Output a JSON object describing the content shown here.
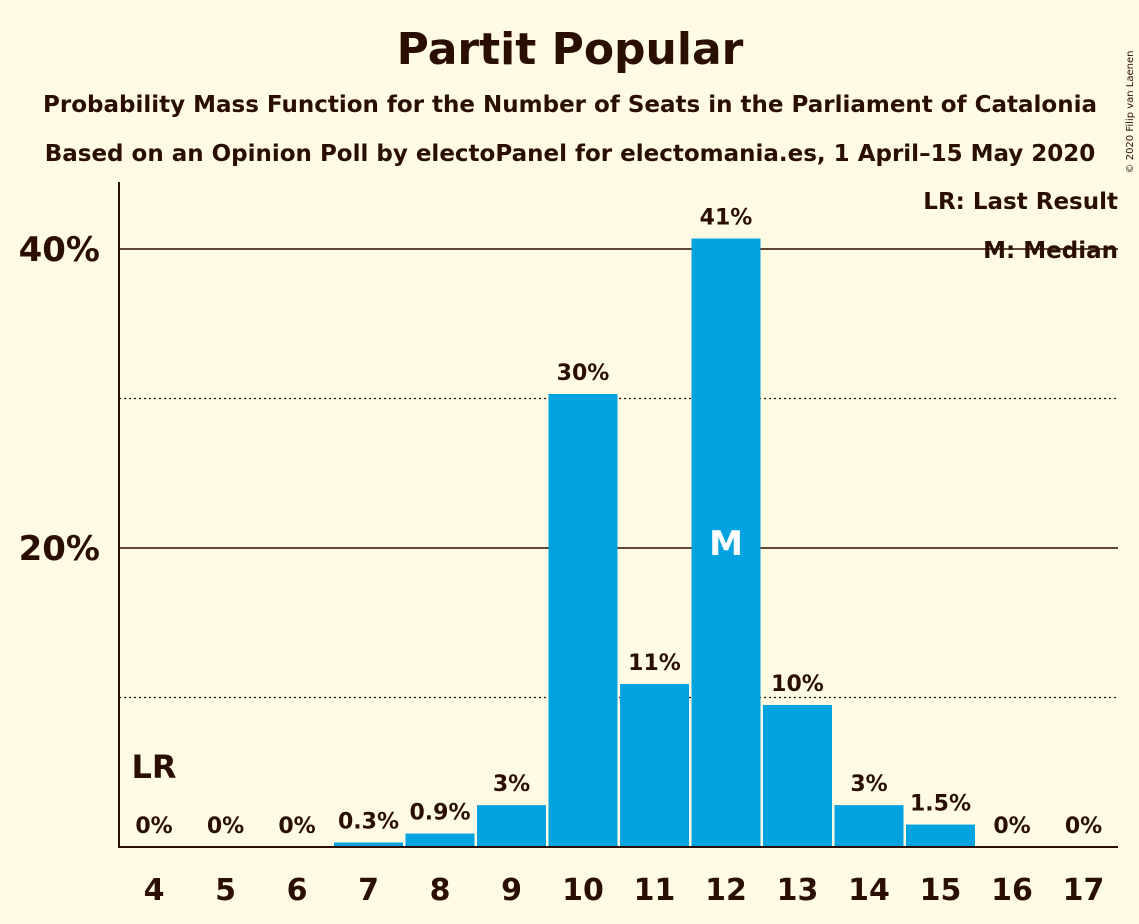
{
  "chart_data": {
    "type": "bar",
    "title": "Partit Popular",
    "subtitle_1": "Probability Mass Function for the Number of Seats in the Parliament of Catalonia",
    "subtitle_2": "Based on an Opinion Poll by electoPanel for electomania.es, 1 April–15 May 2020",
    "categories": [
      "4",
      "5",
      "6",
      "7",
      "8",
      "9",
      "10",
      "11",
      "12",
      "13",
      "14",
      "15",
      "16",
      "17"
    ],
    "values": [
      0,
      0,
      0,
      0.3,
      0.9,
      2.8,
      30.3,
      10.9,
      40.7,
      9.5,
      2.8,
      1.5,
      0,
      0
    ],
    "data_labels": [
      "0%",
      "0%",
      "0%",
      "0.3%",
      "0.9%",
      "3%",
      "30%",
      "11%",
      "41%",
      "10%",
      "3%",
      "1.5%",
      "0%",
      "0%"
    ],
    "ylim": [
      0,
      45
    ],
    "y_ticks": [
      {
        "value": 20,
        "label": "20%"
      },
      {
        "value": 40,
        "label": "40%"
      }
    ],
    "minor_gridlines": [
      10,
      30
    ],
    "major_gridlines": [
      20,
      40
    ],
    "last_result_category": "4",
    "last_result_marker": "LR",
    "median_category": "12",
    "median_marker": "M",
    "legend": {
      "position": "top-right",
      "items": [
        "LR: Last Result",
        "M: Median"
      ]
    },
    "bar_color": "#00A2E0",
    "background_color": "#FFFBE3",
    "text_color": "#2a0f00"
  },
  "copyright": "© 2020 Filip van Laenen"
}
